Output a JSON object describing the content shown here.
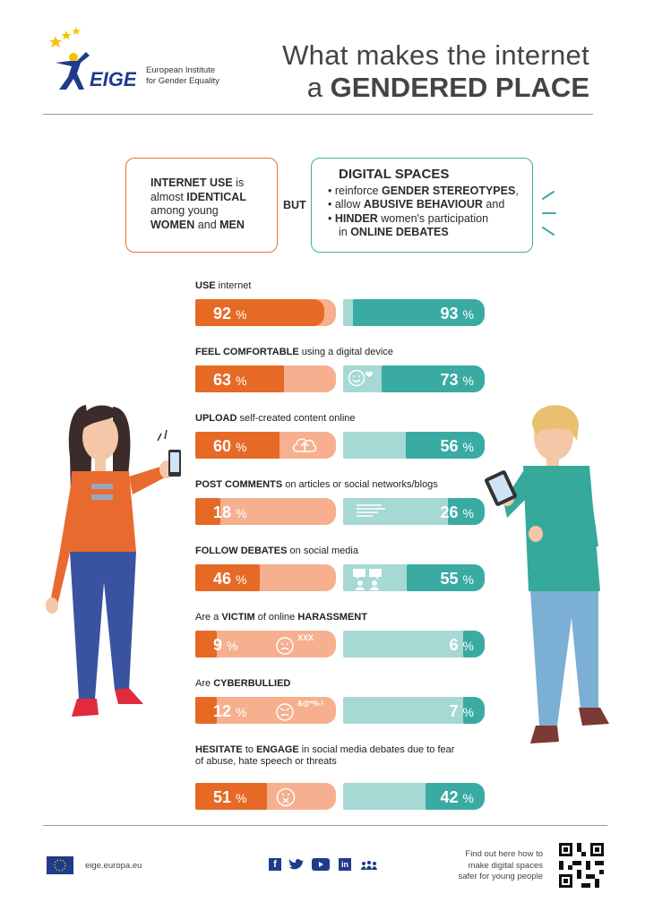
{
  "header": {
    "org_line1": "European Institute",
    "org_line2": "for Gender Equality",
    "logo_text": "EIGE",
    "title_line1": "What makes the internet",
    "title_line2_prefix": "a",
    "title_line2_bold": "GENDERED PLACE"
  },
  "intro": {
    "left_b1": "INTERNET USE",
    "left_t1": " is",
    "left_t2": "almost ",
    "left_b2": "IDENTICAL",
    "left_t3": "among young",
    "left_b3": "WOMEN",
    "left_t4": " and ",
    "left_b4": "MEN",
    "but": "BUT",
    "right_title": "DIGITAL SPACES",
    "r1_t": "reinforce ",
    "r1_b": "GENDER STEREOTYPES",
    "r1_e": ",",
    "r2_t": "allow ",
    "r2_b": "ABUSIVE BEHAVIOUR",
    "r2_e": " and",
    "r3_b": "HINDER",
    "r3_e": " women's participation",
    "r4_t": "in ",
    "r4_b": "ONLINE DEBATES"
  },
  "colors": {
    "women": "#e66a25",
    "women_light": "#f6b08f",
    "men": "#3aaba3",
    "men_light": "#a6d8d4"
  },
  "chart_data": {
    "type": "bar",
    "series": [
      {
        "name": "women",
        "values": [
          92,
          63,
          60,
          18,
          46,
          9,
          12,
          51
        ]
      },
      {
        "name": "men",
        "values": [
          93,
          73,
          56,
          26,
          55,
          6,
          7,
          42
        ]
      }
    ],
    "categories": [
      {
        "pre": "",
        "bold": "USE",
        "post": " internet"
      },
      {
        "pre": "",
        "bold": "FEEL COMFORTABLE",
        "post": " using a digital device"
      },
      {
        "pre": "",
        "bold": "UPLOAD",
        "post": " self-created content online"
      },
      {
        "pre": "",
        "bold": "POST COMMENTS",
        "post": " on articles or social networks/blogs"
      },
      {
        "pre": "",
        "bold": "FOLLOW DEBATES",
        "post": " on social media"
      },
      {
        "pre": "Are a ",
        "bold": "VICTIM",
        "post": " of online ",
        "bold2": "HARASSMENT"
      },
      {
        "pre": "Are ",
        "bold": "CYBERBULLIED",
        "post": ""
      },
      {
        "pre": "",
        "bold": "HESITATE",
        "post": " to ",
        "bold2": "ENGAGE",
        "post2": " in social media debates due to fear",
        "line2": "of abuse, hate speech or threats"
      }
    ],
    "unit": "%",
    "icon_texts": {
      "victim": "XXX",
      "cyberbullied": "&@*%-!"
    },
    "ylim": [
      0,
      100
    ]
  },
  "footer": {
    "url": "eige.europa.eu",
    "cta1": "Find out here how to",
    "cta2": "make digital spaces",
    "cta3": "safer for young people"
  }
}
